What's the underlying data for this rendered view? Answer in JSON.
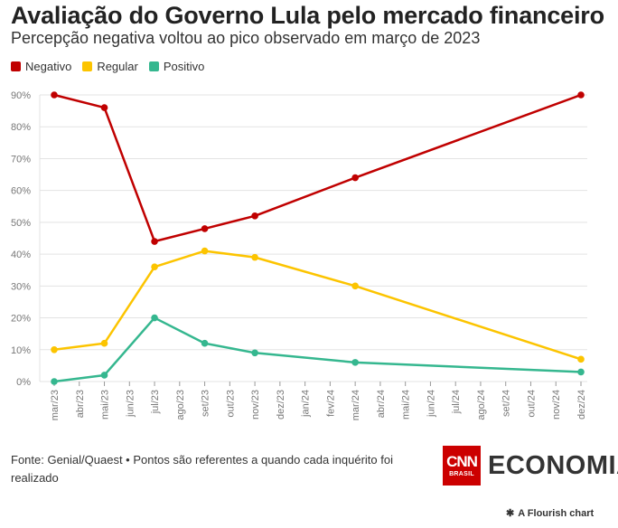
{
  "chart_data": {
    "type": "line",
    "title": "Avaliação do Governo Lula pelo mercado financeiro",
    "subtitle": "Percepção negativa voltou ao pico observado em março de 2023",
    "x": [
      "mar/23",
      "abr/23",
      "mai/23",
      "jun/23",
      "jul/23",
      "ago/23",
      "set/23",
      "out/23",
      "nov/23",
      "dez/23",
      "jan/24",
      "fev/24",
      "mar/24",
      "abr/24",
      "mai/24",
      "jun/24",
      "jul/24",
      "ago/24",
      "set/24",
      "out/24",
      "nov/24",
      "dez/24"
    ],
    "yticks": [
      "0%",
      "10%",
      "20%",
      "30%",
      "40%",
      "50%",
      "60%",
      "70%",
      "80%",
      "90%"
    ],
    "ylim": [
      0,
      90
    ],
    "legend_position": "top-left",
    "series": [
      {
        "name": "Negativo",
        "color": "#c00000",
        "points": [
          [
            "mar/23",
            90
          ],
          [
            "mai/23",
            86
          ],
          [
            "jul/23",
            44
          ],
          [
            "set/23",
            48
          ],
          [
            "nov/23",
            52
          ],
          [
            "mar/24",
            64
          ],
          [
            "dez/24",
            90
          ]
        ]
      },
      {
        "name": "Regular",
        "color": "#fcc400",
        "points": [
          [
            "mar/23",
            10
          ],
          [
            "mai/23",
            12
          ],
          [
            "jul/23",
            36
          ],
          [
            "set/23",
            41
          ],
          [
            "nov/23",
            39
          ],
          [
            "mar/24",
            30
          ],
          [
            "dez/24",
            7
          ]
        ]
      },
      {
        "name": "Positivo",
        "color": "#35b78f",
        "points": [
          [
            "mar/23",
            0
          ],
          [
            "mai/23",
            2
          ],
          [
            "jul/23",
            20
          ],
          [
            "set/23",
            12
          ],
          [
            "nov/23",
            9
          ],
          [
            "mar/24",
            6
          ],
          [
            "dez/24",
            3
          ]
        ]
      }
    ]
  },
  "footer": {
    "source": "Fonte: Genial/Quaest • Pontos são referentes a quando cada inquérito foi realizado",
    "logo_cnn": "CNN",
    "logo_brasil": "BRASIL",
    "logo_economia": "ECONOMIA",
    "flourish": "A Flourish chart"
  }
}
